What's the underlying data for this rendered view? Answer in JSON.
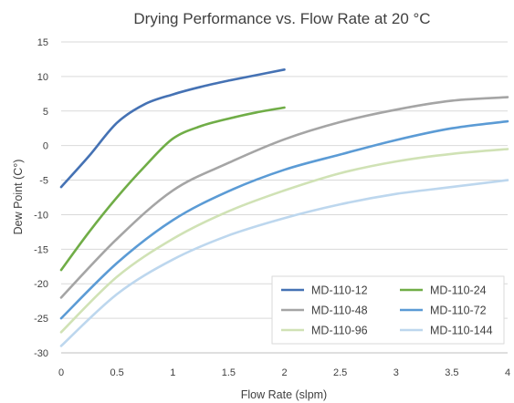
{
  "chart_data": {
    "type": "line",
    "title": "Drying Performance vs. Flow Rate at 20 °C",
    "xlabel": "Flow Rate (slpm)",
    "ylabel": "Dew Point (C°)",
    "xlim": [
      0,
      4
    ],
    "ylim": [
      -30,
      15
    ],
    "xticks": [
      0,
      0.5,
      1,
      1.5,
      2,
      2.5,
      3,
      3.5,
      4
    ],
    "xtick_labels": [
      "0",
      "0.5",
      "1",
      "1.5",
      "2",
      "2.5",
      "3",
      "3.5",
      "4"
    ],
    "yticks": [
      -30,
      -25,
      -20,
      -15,
      -10,
      -5,
      0,
      5,
      10,
      15
    ],
    "ytick_labels": [
      "-30",
      "-25",
      "-20",
      "-15",
      "-10",
      "-5",
      "0",
      "5",
      "10",
      "15"
    ],
    "grid": "horizontal",
    "legend_position": "bottom-right",
    "series": [
      {
        "name": "MD-110-12",
        "color": "#4572b4",
        "x": [
          0,
          0.25,
          0.5,
          0.75,
          1,
          1.25,
          1.5,
          1.75,
          2
        ],
        "y": [
          -6,
          -1.5,
          3.3,
          6,
          7.4,
          8.5,
          9.4,
          10.2,
          11
        ]
      },
      {
        "name": "MD-110-24",
        "color": "#70ad47",
        "x": [
          0,
          0.25,
          0.5,
          0.75,
          1,
          1.25,
          1.5,
          1.75,
          2
        ],
        "y": [
          -18,
          -12.5,
          -7.5,
          -3,
          1,
          2.8,
          3.9,
          4.8,
          5.5
        ]
      },
      {
        "name": "MD-110-48",
        "color": "#a5a5a5",
        "x": [
          0,
          0.5,
          1,
          1.5,
          2,
          2.5,
          3,
          3.5,
          4
        ],
        "y": [
          -22,
          -13.5,
          -6.5,
          -2.5,
          0.9,
          3.4,
          5.2,
          6.5,
          7
        ]
      },
      {
        "name": "MD-110-72",
        "color": "#5b9bd5",
        "x": [
          0,
          0.5,
          1,
          1.5,
          2,
          2.5,
          3,
          3.5,
          4
        ],
        "y": [
          -25,
          -17,
          -10.8,
          -6.6,
          -3.5,
          -1.3,
          0.8,
          2.5,
          3.5
        ]
      },
      {
        "name": "MD-110-96",
        "color": "#d0e2b5",
        "x": [
          0,
          0.5,
          1,
          1.5,
          2,
          2.5,
          3,
          3.5,
          4
        ],
        "y": [
          -27,
          -19,
          -13.5,
          -9.5,
          -6.5,
          -4,
          -2.3,
          -1.2,
          -0.5
        ]
      },
      {
        "name": "MD-110-144",
        "color": "#bdd7ee",
        "x": [
          0,
          0.5,
          1,
          1.5,
          2,
          2.5,
          3,
          3.5,
          4
        ],
        "y": [
          -29,
          -21.5,
          -16.5,
          -13,
          -10.5,
          -8.5,
          -7,
          -6,
          -5
        ]
      }
    ]
  }
}
